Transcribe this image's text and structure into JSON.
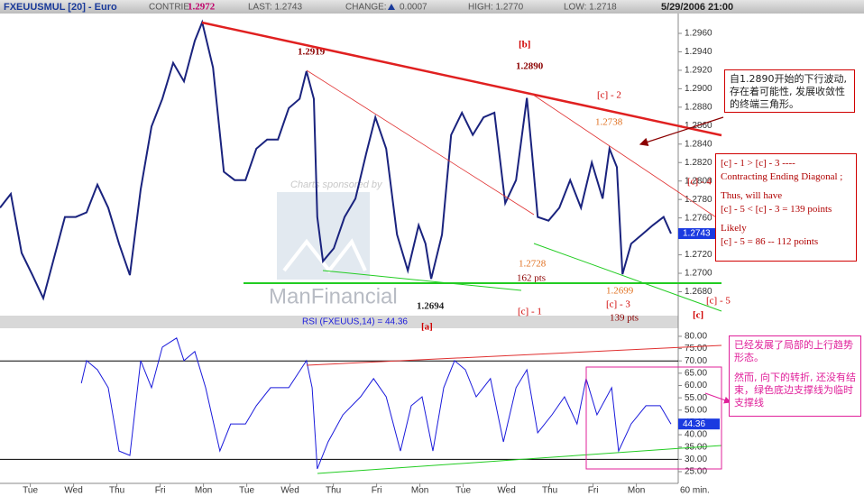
{
  "header": {
    "symbol": "FXEUUSMUL [20] - Euro",
    "contrib": "CONTRIE",
    "last": "LAST: 1.2743",
    "change": "CHANGE:",
    "change_value": "0.0007",
    "high": "HIGH: 1.2770",
    "low": "LOW: 1.2718",
    "datetime": "5/29/2006 21:00"
  },
  "watermark": [
    "Charts sponsored by",
    "ManFinancial"
  ],
  "chart_data": [
    {
      "type": "line",
      "color": "#1a237e",
      "last_label": "1.2743",
      "x": [
        0,
        0.25,
        0.5,
        0.75,
        1,
        1.25,
        1.5,
        1.75,
        2,
        2.25,
        2.5,
        2.75,
        3,
        3.25,
        3.5,
        3.75,
        4,
        4.25,
        4.5,
        4.67,
        4.92,
        5.17,
        5.42,
        5.67,
        5.92,
        6.17,
        6.42,
        6.67,
        6.92,
        7.08,
        7.25,
        7.33,
        7.46,
        7.71,
        7.96,
        8.21,
        8.46,
        8.67,
        8.92,
        9.17,
        9.42,
        9.67,
        9.83,
        9.96,
        10.21,
        10.42,
        10.67,
        10.92,
        11.17,
        11.42,
        11.67,
        11.92,
        12.17,
        12.29,
        12.42,
        12.67,
        12.92,
        13.17,
        13.42,
        13.67,
        13.92,
        14.08,
        14.25,
        14.38,
        14.58,
        14.83,
        15.08,
        15.33,
        15.5
      ],
      "values": [
        1.2771,
        1.2786,
        1.2722,
        1.2698,
        1.2673,
        1.2717,
        1.2761,
        1.2761,
        1.2766,
        1.2796,
        1.2771,
        1.2732,
        1.2698,
        1.2791,
        1.2859,
        1.2889,
        1.2928,
        1.2908,
        1.2952,
        1.2972,
        1.2923,
        1.281,
        1.2801,
        1.2801,
        1.2835,
        1.2845,
        1.2845,
        1.2879,
        1.2889,
        1.2919,
        1.2889,
        1.2761,
        1.2713,
        1.2727,
        1.2761,
        1.2781,
        1.283,
        1.2869,
        1.2835,
        1.2742,
        1.2703,
        1.2752,
        1.2732,
        1.2694,
        1.2742,
        1.285,
        1.2874,
        1.285,
        1.2869,
        1.2874,
        1.2776,
        1.2801,
        1.289,
        1.283,
        1.2761,
        1.2757,
        1.2771,
        1.2801,
        1.2771,
        1.282,
        1.2781,
        1.2835,
        1.2815,
        1.2699,
        1.2732,
        1.2742,
        1.2752,
        1.2761,
        1.2743
      ],
      "xlim": [
        0,
        15.625
      ],
      "ylim": [
        1.26541,
        1.29815
      ],
      "yticks": [
        {
          "value": 1.268,
          "label": "1.2680"
        },
        {
          "value": 1.27,
          "label": "1.2700"
        },
        {
          "value": 1.272,
          "label": "1.2720"
        },
        {
          "value": 1.274,
          "label": "1.2740"
        },
        {
          "value": 1.276,
          "label": "1.2760"
        },
        {
          "value": 1.278,
          "label": "1.2780"
        },
        {
          "value": 1.28,
          "label": "1.2800"
        },
        {
          "value": 1.282,
          "label": "1.2820"
        },
        {
          "value": 1.284,
          "label": "1.2840"
        },
        {
          "value": 1.286,
          "label": "1.2860"
        },
        {
          "value": 1.288,
          "label": "1.2880"
        },
        {
          "value": 1.29,
          "label": "1.2900"
        },
        {
          "value": 1.292,
          "label": "1.2920"
        },
        {
          "value": 1.294,
          "label": "1.2940"
        },
        {
          "value": 1.296,
          "label": "1.2960"
        }
      ]
    },
    {
      "type": "line",
      "title": "RSI (FXEUUS,14) = 44.36",
      "color": "#1a1adb",
      "last_label": "44.36",
      "x": [
        1.88,
        2,
        2.25,
        2.5,
        2.75,
        3,
        3.25,
        3.5,
        3.75,
        4.08,
        4.25,
        4.5,
        4.75,
        5.08,
        5.33,
        5.67,
        5.92,
        6.25,
        6.67,
        7.08,
        7.21,
        7.33,
        7.58,
        7.92,
        8.33,
        8.63,
        8.92,
        9.25,
        9.5,
        9.75,
        10,
        10.25,
        10.5,
        10.75,
        11,
        11.33,
        11.63,
        11.92,
        12.17,
        12.42,
        12.75,
        13.04,
        13.33,
        13.54,
        13.79,
        14.13,
        14.29,
        14.58,
        14.92,
        15.25,
        15.5
      ],
      "values": [
        60.9,
        70.1,
        66.4,
        59.1,
        33.4,
        31.6,
        70.1,
        59.1,
        75.6,
        79.3,
        70.1,
        73.8,
        59.1,
        33.4,
        44.4,
        44.4,
        51.8,
        59.1,
        59.1,
        70.1,
        59.1,
        26.1,
        37.1,
        48.1,
        55.4,
        62.8,
        55.4,
        33.4,
        51.8,
        55.4,
        33.4,
        59.1,
        70.1,
        66.4,
        55.4,
        62.8,
        37.1,
        59.1,
        66.4,
        40.8,
        48.1,
        55.4,
        44.4,
        62.8,
        48.1,
        59.1,
        33.4,
        44.4,
        51.8,
        51.8,
        44.36
      ],
      "xlim": [
        0,
        15.625
      ],
      "ylim": [
        21.7,
        82.9
      ],
      "reference_lines": [
        70,
        30
      ],
      "yticks": [
        {
          "value": 25,
          "label": "25.00"
        },
        {
          "value": 30,
          "label": "30.00"
        },
        {
          "value": 35,
          "label": "35.00"
        },
        {
          "value": 40,
          "label": "40.00"
        },
        {
          "value": 45,
          "label": "45.00"
        },
        {
          "value": 50,
          "label": "50.00"
        },
        {
          "value": 55,
          "label": "55.00"
        },
        {
          "value": 60,
          "label": "60.00"
        },
        {
          "value": 65,
          "label": "65.00"
        },
        {
          "value": 70,
          "label": "70.00"
        },
        {
          "value": 75,
          "label": "75.00"
        },
        {
          "value": 80,
          "label": "80.00"
        }
      ],
      "xticks": [
        {
          "value": 0.7,
          "label": "Tue"
        },
        {
          "value": 1.7,
          "label": "Wed"
        },
        {
          "value": 2.7,
          "label": "Thu"
        },
        {
          "value": 3.7,
          "label": "Fri"
        },
        {
          "value": 4.7,
          "label": "Mon"
        },
        {
          "value": 5.7,
          "label": "Tue"
        },
        {
          "value": 6.7,
          "label": "Wed"
        },
        {
          "value": 7.7,
          "label": "Thu"
        },
        {
          "value": 8.7,
          "label": "Fri"
        },
        {
          "value": 9.7,
          "label": "Mon"
        },
        {
          "value": 10.7,
          "label": "Tue"
        },
        {
          "value": 11.7,
          "label": "Wed"
        },
        {
          "value": 12.7,
          "label": "Thu"
        },
        {
          "value": 13.7,
          "label": "Fri"
        },
        {
          "value": 14.7,
          "label": "Mon"
        }
      ],
      "x_label": "60 min."
    }
  ],
  "annotations": [
    "1.2972",
    "1.2919",
    "[b]",
    "1.2890",
    "[c] - 2",
    "1.2738",
    "[c] - 4",
    "1.2728",
    "162 pts",
    "1.2699",
    "[c] - 3",
    "139 pts",
    "1.2694",
    "[c] - 1",
    "[c] - 5",
    "[c]",
    "[a]"
  ],
  "notes": {
    "triangle": "自1.2890开始的下行波动, 存在着可能性, 发展收敛性的终端三角形。",
    "diagonal": [
      "[c] - 1 > [c] - 3 ----",
      "Contracting Ending Diagonal ;",
      "Thus, will have",
      "[c] - 5 < [c] - 3 = 139 points",
      "Likely",
      "[c] - 5 =  86 -- 112 points"
    ],
    "rsi_up": "已经发展了局部的上行趋势形态。",
    "rsi_down": "然而, 向下的转折, 还没有结束，绿色底边支撑线为临时支撑线"
  }
}
